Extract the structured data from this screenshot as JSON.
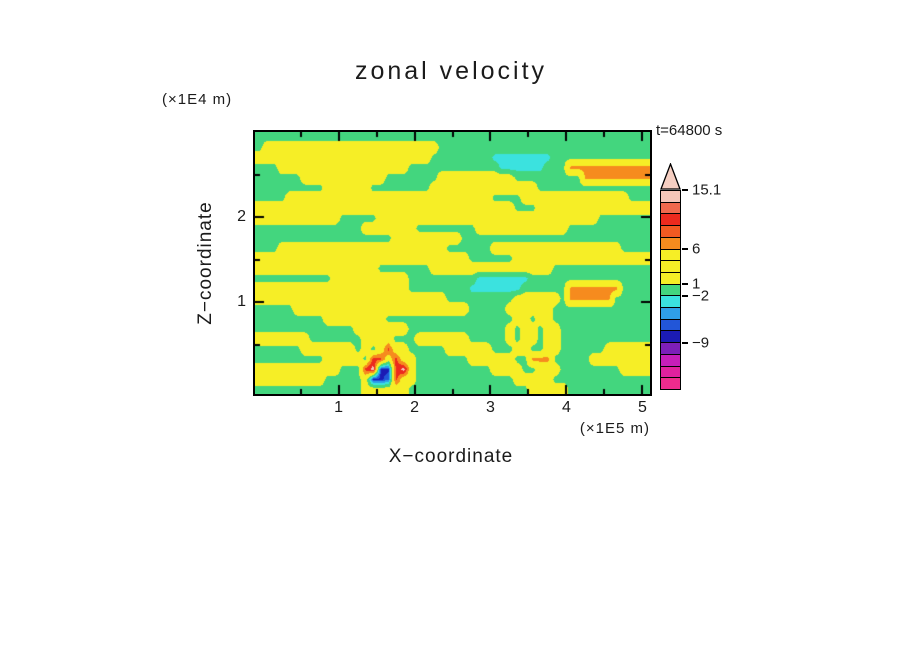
{
  "title": "zonal velocity",
  "annotations": {
    "time_label": "t=64800 s"
  },
  "axes": {
    "x": {
      "label": "X−coordinate",
      "units": "(×1E5 m)",
      "range": [
        -0.1,
        5.1
      ],
      "majors": [
        1,
        2,
        3,
        4,
        5
      ],
      "minors": [
        0.5,
        1.5,
        2.5,
        3.5,
        4.5
      ],
      "tick_labels": [
        "1",
        "2",
        "3",
        "4",
        "5"
      ]
    },
    "z": {
      "label": "Z−coordinate",
      "units": "(×1E4 m)",
      "range": [
        3.0,
        -0.08
      ],
      "majors": [
        1,
        2
      ],
      "minors": [
        0.5,
        1.5,
        2.5
      ],
      "tick_labels": [
        "1",
        "2"
      ]
    }
  },
  "chart_data": {
    "type": "heatmap",
    "title": "zonal velocity",
    "xlabel": "X−coordinate (×1E5 m)",
    "ylabel": "Z−coordinate (×1E4 m)",
    "time": "t=64800 s",
    "x_range": [
      0,
      5.1
    ],
    "z_range": [
      0,
      3.0
    ],
    "levels": [
      {
        "min": 12,
        "color": "#f6c6b8"
      },
      {
        "min": 9,
        "color": "#ec2a1e"
      },
      {
        "min": 6,
        "color": "#f68b1e"
      },
      {
        "min": 1,
        "color": "#f6ee26"
      },
      {
        "min": -2,
        "color": "#43d67e"
      },
      {
        "min": -4,
        "color": "#3be2df"
      },
      {
        "min": -6,
        "color": "#2f9fe8"
      },
      {
        "min": -7.5,
        "color": "#2256d8"
      },
      {
        "min": -9,
        "color": "#1b1bb4"
      },
      {
        "min": -999,
        "color": "#d620b9"
      }
    ],
    "grid": {
      "nx": 52,
      "nz": 26,
      "value_map": {
        "G": 0,
        "Y": 3,
        "C": -3,
        "O": 7,
        "R": 10,
        "B": -6.5,
        "N": -8,
        "P": 13.5
      },
      "rows": [
        [
          [
            "G",
            52
          ]
        ],
        [
          [
            "G",
            1
          ],
          [
            "Y",
            23
          ],
          [
            "G",
            28
          ]
        ],
        [
          [
            "Y",
            23
          ],
          [
            "G",
            8
          ],
          [
            "C",
            8
          ],
          [
            "G",
            13
          ]
        ],
        [
          [
            "G",
            3
          ],
          [
            "Y",
            17
          ],
          [
            "G",
            12
          ],
          [
            "C",
            6
          ],
          [
            "G",
            3
          ],
          [
            "O",
            11
          ]
        ],
        [
          [
            "G",
            6
          ],
          [
            "Y",
            11
          ],
          [
            "G",
            7
          ],
          [
            "Y",
            10
          ],
          [
            "G",
            9
          ],
          [
            "O",
            9
          ]
        ],
        [
          [
            "G",
            9
          ],
          [
            "Y",
            6
          ],
          [
            "G",
            8
          ],
          [
            "Y",
            14
          ],
          [
            "G",
            15
          ]
        ],
        [
          [
            "G",
            4
          ],
          [
            "Y",
            27
          ],
          [
            "G",
            4
          ],
          [
            "Y",
            14
          ],
          [
            "G",
            3
          ]
        ],
        [
          [
            "Y",
            34
          ],
          [
            "G",
            3
          ],
          [
            "Y",
            15
          ]
        ],
        [
          [
            "Y",
            11
          ],
          [
            "G",
            5
          ],
          [
            "Y",
            29
          ],
          [
            "G",
            7
          ]
        ],
        [
          [
            "G",
            14
          ],
          [
            "Y",
            7
          ],
          [
            "G",
            8
          ],
          [
            "Y",
            12
          ],
          [
            "G",
            11
          ]
        ],
        [
          [
            "G",
            18
          ],
          [
            "Y",
            9
          ],
          [
            "G",
            25
          ]
        ],
        [
          [
            "G",
            3
          ],
          [
            "Y",
            22
          ],
          [
            "G",
            6
          ],
          [
            "Y",
            17
          ],
          [
            "G",
            4
          ]
        ],
        [
          [
            "Y",
            28
          ],
          [
            "G",
            6
          ],
          [
            "Y",
            18
          ]
        ],
        [
          [
            "Y",
            16
          ],
          [
            "G",
            7
          ],
          [
            "Y",
            16
          ],
          [
            "G",
            13
          ]
        ],
        [
          [
            "G",
            10
          ],
          [
            "Y",
            10
          ],
          [
            "G",
            9
          ],
          [
            "C",
            7
          ],
          [
            "G",
            16
          ]
        ],
        [
          [
            "Y",
            20
          ],
          [
            "G",
            8
          ],
          [
            "C",
            7
          ],
          [
            "G",
            6
          ],
          [
            "O",
            7
          ],
          [
            "G",
            4
          ]
        ],
        [
          [
            "Y",
            25
          ],
          [
            "G",
            9
          ],
          [
            "Y",
            6
          ],
          [
            "G",
            1
          ],
          [
            "O",
            6
          ],
          [
            "G",
            5
          ]
        ],
        [
          [
            "G",
            5
          ],
          [
            "Y",
            23
          ],
          [
            "G",
            5
          ],
          [
            "Y",
            6
          ],
          [
            "G",
            13
          ]
        ],
        [
          [
            "G",
            9
          ],
          [
            "Y",
            8
          ],
          [
            "G",
            17
          ],
          [
            "Y",
            2
          ],
          [
            "G",
            1
          ],
          [
            "Y",
            2
          ],
          [
            "G",
            13
          ]
        ],
        [
          [
            "G",
            13
          ],
          [
            "Y",
            7
          ],
          [
            "G",
            13
          ],
          [
            "Y",
            1
          ],
          [
            "G",
            1
          ],
          [
            "Y",
            2
          ],
          [
            "G",
            1
          ],
          [
            "Y",
            2
          ],
          [
            "G",
            12
          ]
        ],
        [
          [
            "Y",
            7
          ],
          [
            "G",
            7
          ],
          [
            "Y",
            4
          ],
          [
            "G",
            3
          ],
          [
            "Y",
            7
          ],
          [
            "G",
            5
          ],
          [
            "Y",
            1
          ],
          [
            "G",
            1
          ],
          [
            "Y",
            2
          ],
          [
            "G",
            1
          ],
          [
            "Y",
            2
          ],
          [
            "G",
            12
          ]
        ],
        [
          [
            "G",
            6
          ],
          [
            "Y",
            7
          ],
          [
            "G",
            1
          ],
          [
            "Y",
            1
          ],
          [
            "G",
            1
          ],
          [
            "Y",
            1
          ],
          [
            "R",
            1
          ],
          [
            "Y",
            2
          ],
          [
            "G",
            5
          ],
          [
            "Y",
            6
          ],
          [
            "G",
            3
          ],
          [
            "Y",
            2
          ],
          [
            "G",
            2
          ],
          [
            "Y",
            2
          ],
          [
            "G",
            6
          ],
          [
            "Y",
            6
          ]
        ],
        [
          [
            "G",
            9
          ],
          [
            "Y",
            5
          ],
          [
            "G",
            1
          ],
          [
            "R",
            2
          ],
          [
            "Y",
            1
          ],
          [
            "R",
            1
          ],
          [
            "Y",
            2
          ],
          [
            "G",
            7
          ],
          [
            "Y",
            6
          ],
          [
            "G",
            2
          ],
          [
            "O",
            3
          ],
          [
            "G",
            5
          ],
          [
            "Y",
            8
          ]
        ],
        [
          [
            "Y",
            11
          ],
          [
            "G",
            3
          ],
          [
            "R",
            1
          ],
          [
            "P",
            1
          ],
          [
            "N",
            2
          ],
          [
            "R",
            1
          ],
          [
            "P",
            1
          ],
          [
            "Y",
            1
          ],
          [
            "G",
            10
          ],
          [
            "Y",
            4
          ],
          [
            "G",
            2
          ],
          [
            "Y",
            3
          ],
          [
            "G",
            8
          ],
          [
            "Y",
            4
          ]
        ],
        [
          [
            "Y",
            9
          ],
          [
            "G",
            5
          ],
          [
            "Y",
            1
          ],
          [
            "N",
            2
          ],
          [
            "B",
            1
          ],
          [
            "R",
            1
          ],
          [
            "Y",
            2
          ],
          [
            "G",
            13
          ],
          [
            "Y",
            5
          ],
          [
            "G",
            13
          ]
        ],
        [
          [
            "G",
            14
          ],
          [
            "Y",
            6
          ],
          [
            "G",
            16
          ],
          [
            "Y",
            5
          ],
          [
            "G",
            11
          ]
        ]
      ]
    },
    "colorbar": {
      "arrow_color": "#f6cfc2",
      "segments": [
        "#f6c6b8",
        "#f0694d",
        "#ec2a1e",
        "#f15a22",
        "#f68b1e",
        "#f6ee26",
        "#f6ee26",
        "#f6ee26",
        "#43d67e",
        "#3be2df",
        "#2f9fe8",
        "#2256d8",
        "#1b1bb4",
        "#7d1fb8",
        "#c71eb9",
        "#e0219e",
        "#ef2b8d"
      ],
      "ticks": [
        {
          "label": "15.1",
          "pos": 0.0
        },
        {
          "label": "6",
          "pos": 0.294
        },
        {
          "label": "1",
          "pos": 0.47
        },
        {
          "label": "−2",
          "pos": 0.529
        },
        {
          "label": "−9",
          "pos": 0.765
        }
      ]
    }
  }
}
